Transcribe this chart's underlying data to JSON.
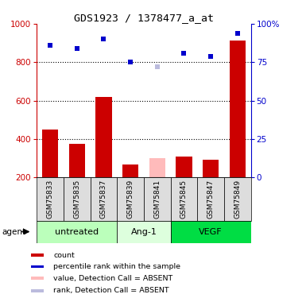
{
  "title": "GDS1923 / 1378477_a_at",
  "samples": [
    "GSM75833",
    "GSM75835",
    "GSM75837",
    "GSM75839",
    "GSM75841",
    "GSM75845",
    "GSM75847",
    "GSM75849"
  ],
  "groups": [
    {
      "name": "untreated",
      "samples_idx": [
        0,
        1,
        2
      ],
      "color": "#bbffbb"
    },
    {
      "name": "Ang-1",
      "samples_idx": [
        3,
        4
      ],
      "color": "#ddffdd"
    },
    {
      "name": "VEGF",
      "samples_idx": [
        5,
        6,
        7
      ],
      "color": "#00dd44"
    }
  ],
  "bar_values": [
    450,
    375,
    620,
    265,
    300,
    310,
    290,
    915
  ],
  "bar_absent": [
    false,
    false,
    false,
    false,
    true,
    false,
    false,
    false
  ],
  "rank_values": [
    86,
    84,
    90,
    75,
    72,
    81,
    79,
    94
  ],
  "rank_absent": [
    false,
    false,
    false,
    false,
    true,
    false,
    false,
    false
  ],
  "bar_color": "#cc0000",
  "bar_absent_color": "#ffbbbb",
  "rank_color": "#0000cc",
  "rank_absent_color": "#bbbbdd",
  "ylim_left": [
    200,
    1000
  ],
  "ylim_right": [
    0,
    100
  ],
  "yticks_left": [
    200,
    400,
    600,
    800,
    1000
  ],
  "yticks_right": [
    0,
    25,
    50,
    75,
    100
  ],
  "grid_values": [
    400,
    600,
    800
  ],
  "legend_items": [
    {
      "label": "count",
      "color": "#cc0000"
    },
    {
      "label": "percentile rank within the sample",
      "color": "#0000cc"
    },
    {
      "label": "value, Detection Call = ABSENT",
      "color": "#ffbbbb"
    },
    {
      "label": "rank, Detection Call = ABSENT",
      "color": "#bbbbdd"
    }
  ]
}
